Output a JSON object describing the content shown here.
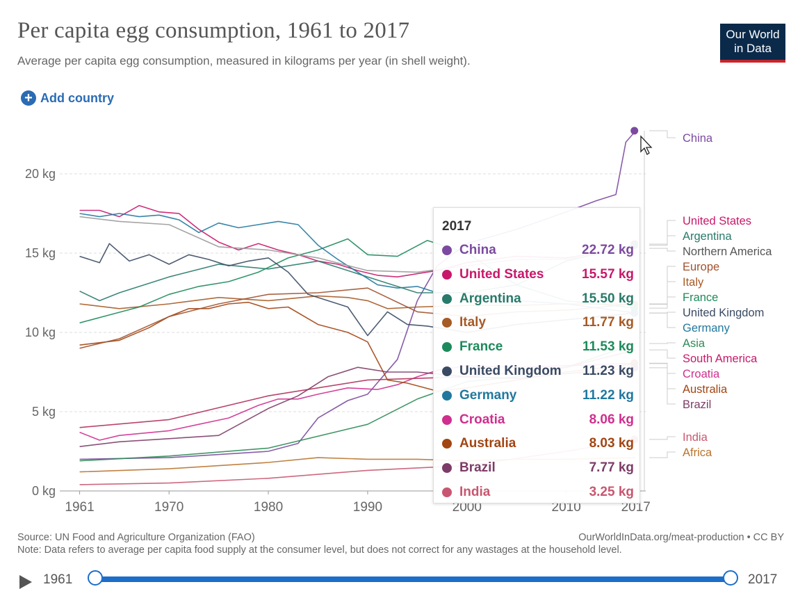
{
  "header": {
    "title": "Per capita egg consumption, 1961 to 2017",
    "subtitle": "Average per capita egg consumption, measured in kilograms per year (in shell weight).",
    "logo_line1": "Our World",
    "logo_line2": "in Data",
    "add_country": "Add country"
  },
  "footer": {
    "source": "Source: UN Food and Agriculture Organization (FAO)",
    "note": "Note: Data refers to average per capita food supply at the consumer level, but does not correct for any wastages at the household level.",
    "license": "OurWorldInData.org/meat-production • CC BY"
  },
  "slider": {
    "start": "1961",
    "end": "2017"
  },
  "tooltip": {
    "year": "2017",
    "rows": [
      {
        "name": "China",
        "value": "22.72 kg",
        "color": "#7b4aa0"
      },
      {
        "name": "United States",
        "value": "15.57 kg",
        "color": "#c8186b"
      },
      {
        "name": "Argentina",
        "value": "15.50 kg",
        "color": "#287a6a"
      },
      {
        "name": "Italy",
        "value": "11.77 kg",
        "color": "#a65a25"
      },
      {
        "name": "France",
        "value": "11.53 kg",
        "color": "#1d8a5b"
      },
      {
        "name": "United Kingdom",
        "value": "11.23 kg",
        "color": "#3a4a63"
      },
      {
        "name": "Germany",
        "value": "11.22 kg",
        "color": "#21789e"
      },
      {
        "name": "Croatia",
        "value": "8.06 kg",
        "color": "#cf2f8e"
      },
      {
        "name": "Australia",
        "value": "8.03 kg",
        "color": "#a24512"
      },
      {
        "name": "Brazil",
        "value": "7.77 kg",
        "color": "#7d3c67"
      },
      {
        "name": "India",
        "value": "3.25 kg",
        "color": "#c95670"
      }
    ]
  },
  "chart_data": {
    "type": "line",
    "title": "Per capita egg consumption, 1961 to 2017",
    "ylabel": "",
    "xlim": [
      1959,
      2018
    ],
    "ylim": [
      0,
      22.72
    ],
    "x_ticks": [
      1961,
      1970,
      1980,
      1990,
      2000,
      2010,
      2017
    ],
    "y_ticks": [
      {
        "v": 0,
        "label": "0 kg"
      },
      {
        "v": 5,
        "label": "5 kg"
      },
      {
        "v": 10,
        "label": "10 kg"
      },
      {
        "v": 15,
        "label": "15 kg"
      },
      {
        "v": 20,
        "label": "20 kg"
      }
    ],
    "series": [
      {
        "name": "China",
        "color": "#7b4aa0",
        "x": [
          1961,
          1970,
          1980,
          1983,
          1985,
          1988,
          1990,
          1993,
          1995,
          1997,
          2000,
          2005,
          2010,
          2013,
          2015,
          2016,
          2017
        ],
        "y": [
          2.0,
          2.1,
          2.5,
          3.0,
          4.6,
          5.7,
          6.1,
          8.3,
          12.0,
          14.2,
          15.6,
          16.5,
          17.6,
          18.3,
          18.7,
          22.0,
          22.72
        ]
      },
      {
        "name": "United States",
        "color": "#c8186b",
        "x": [
          1961,
          1963,
          1965,
          1967,
          1969,
          1971,
          1973,
          1975,
          1977,
          1979,
          1981,
          1983,
          1985,
          1987,
          1989,
          1991,
          1993,
          1995,
          1997,
          2000,
          2005,
          2010,
          2015,
          2017
        ],
        "y": [
          17.7,
          17.7,
          17.3,
          18.0,
          17.6,
          17.5,
          16.5,
          15.7,
          15.2,
          15.6,
          15.2,
          14.9,
          14.5,
          14.3,
          13.9,
          13.6,
          13.5,
          13.7,
          13.9,
          14.4,
          14.8,
          14.7,
          15.2,
          15.57
        ]
      },
      {
        "name": "Argentina",
        "color": "#287a6a",
        "x": [
          1961,
          1963,
          1965,
          1970,
          1975,
          1980,
          1985,
          1990,
          1995,
          2000,
          2005,
          2010,
          2017
        ],
        "y": [
          12.6,
          12.0,
          12.5,
          13.5,
          14.3,
          14.0,
          14.5,
          13.5,
          12.5,
          12.5,
          13.0,
          14.5,
          15.5
        ]
      },
      {
        "name": "Italy",
        "color": "#a65a25",
        "x": [
          1961,
          1965,
          1970,
          1975,
          1980,
          1985,
          1988,
          1990,
          1992,
          1995,
          2000,
          2005,
          2010,
          2017
        ],
        "y": [
          11.8,
          11.5,
          11.8,
          12.2,
          12.0,
          12.3,
          12.2,
          12.0,
          11.5,
          11.6,
          11.7,
          11.7,
          11.8,
          11.77
        ]
      },
      {
        "name": "France",
        "color": "#1d8a5b",
        "x": [
          1961,
          1964,
          1967,
          1970,
          1973,
          1976,
          1979,
          1982,
          1985,
          1988,
          1990,
          1993,
          1996,
          2000,
          2005,
          2010,
          2017
        ],
        "y": [
          10.6,
          11.1,
          11.6,
          12.4,
          12.9,
          13.2,
          13.8,
          14.7,
          15.2,
          15.9,
          14.9,
          14.8,
          15.8,
          15.0,
          13.0,
          12.0,
          11.53
        ]
      },
      {
        "name": "United Kingdom",
        "color": "#3a4a63",
        "x": [
          1961,
          1963,
          1964,
          1966,
          1968,
          1970,
          1972,
          1974,
          1976,
          1978,
          1980,
          1982,
          1984,
          1986,
          1988,
          1990,
          1992,
          1994,
          1996,
          2000,
          2005,
          2010,
          2017
        ],
        "y": [
          14.8,
          14.4,
          15.6,
          14.5,
          14.9,
          14.3,
          14.9,
          14.6,
          14.2,
          14.5,
          14.7,
          13.8,
          12.4,
          12.0,
          11.6,
          9.8,
          11.3,
          10.5,
          10.4,
          10.0,
          10.5,
          10.8,
          11.23
        ]
      },
      {
        "name": "Germany",
        "color": "#21789e",
        "x": [
          1961,
          1963,
          1965,
          1967,
          1969,
          1971,
          1973,
          1975,
          1977,
          1979,
          1981,
          1983,
          1985,
          1987,
          1989,
          1991,
          1993,
          1995,
          1997,
          2000,
          2005,
          2010,
          2017
        ],
        "y": [
          17.5,
          17.3,
          17.5,
          17.3,
          17.4,
          17.1,
          16.3,
          16.9,
          16.6,
          16.8,
          17.0,
          16.8,
          15.5,
          14.6,
          13.8,
          13.0,
          12.8,
          12.9,
          12.5,
          12.5,
          12.0,
          11.8,
          11.22
        ]
      },
      {
        "name": "Croatia",
        "color": "#cf2f8e",
        "x": [
          1961,
          1963,
          1965,
          1970,
          1973,
          1976,
          1979,
          1981,
          1983,
          1985,
          1988,
          1991,
          1993,
          1995,
          1997,
          2000,
          2005,
          2010,
          2017
        ],
        "y": [
          3.7,
          3.2,
          3.5,
          3.8,
          4.2,
          4.6,
          5.4,
          5.8,
          5.8,
          6.1,
          6.5,
          6.4,
          6.7,
          7.2,
          7.6,
          7.9,
          7.8,
          7.9,
          8.06
        ]
      },
      {
        "name": "Australia",
        "color": "#a24512",
        "x": [
          1961,
          1965,
          1968,
          1970,
          1972,
          1974,
          1976,
          1978,
          1980,
          1982,
          1985,
          1988,
          1990,
          1992,
          1994,
          1997,
          2000,
          2005,
          2010,
          2017
        ],
        "y": [
          9.2,
          9.5,
          10.3,
          11.0,
          11.5,
          11.5,
          11.8,
          11.9,
          11.5,
          11.6,
          10.5,
          10.0,
          9.4,
          7.0,
          6.8,
          6.3,
          6.5,
          7.0,
          7.5,
          8.03
        ]
      },
      {
        "name": "Brazil",
        "color": "#7d3c67",
        "x": [
          1961,
          1965,
          1970,
          1975,
          1980,
          1983,
          1986,
          1989,
          1992,
          1995,
          2000,
          2005,
          2010,
          2017
        ],
        "y": [
          2.8,
          3.1,
          3.3,
          3.5,
          5.2,
          6.0,
          7.2,
          7.8,
          7.5,
          7.5,
          7.2,
          7.1,
          7.4,
          7.77
        ]
      },
      {
        "name": "India",
        "color": "#c95670",
        "x": [
          1961,
          1970,
          1980,
          1990,
          2000,
          2010,
          2017
        ],
        "y": [
          0.4,
          0.5,
          0.8,
          1.3,
          1.6,
          2.5,
          3.25
        ]
      },
      {
        "name": "Northern America",
        "color": "#9a9a9a",
        "x": [
          1961,
          1965,
          1970,
          1975,
          1980,
          1985,
          1990,
          1995,
          2000,
          2005,
          2010,
          2017
        ],
        "y": [
          17.3,
          17.0,
          16.8,
          15.4,
          15.2,
          14.7,
          13.9,
          13.8,
          14.2,
          14.6,
          14.6,
          15.3
        ]
      },
      {
        "name": "Europe",
        "color": "#a0522d",
        "x": [
          1961,
          1965,
          1970,
          1975,
          1980,
          1985,
          1990,
          1995,
          2000,
          2005,
          2010,
          2017
        ],
        "y": [
          9.0,
          9.6,
          11.0,
          11.8,
          12.4,
          12.5,
          12.8,
          11.3,
          11.0,
          11.3,
          11.4,
          11.8
        ]
      },
      {
        "name": "Asia",
        "color": "#2e8b57",
        "x": [
          1961,
          1970,
          1980,
          1990,
          1995,
          2000,
          2005,
          2010,
          2017
        ],
        "y": [
          1.9,
          2.2,
          2.7,
          4.2,
          5.8,
          6.9,
          7.2,
          7.8,
          9.3
        ]
      },
      {
        "name": "South America",
        "color": "#b0305a",
        "x": [
          1961,
          1970,
          1980,
          1990,
          2000,
          2010,
          2017
        ],
        "y": [
          4.0,
          4.5,
          6.0,
          7.0,
          7.2,
          7.8,
          8.9
        ]
      },
      {
        "name": "Africa",
        "color": "#b8732e",
        "x": [
          1961,
          1970,
          1980,
          1985,
          1990,
          1995,
          2000,
          2005,
          2010,
          2017
        ],
        "y": [
          1.2,
          1.4,
          1.8,
          2.1,
          2.0,
          2.0,
          1.9,
          2.0,
          2.0,
          2.1
        ]
      }
    ],
    "end_labels": [
      {
        "text": "China",
        "color": "#7b4aa0"
      },
      {
        "text": "United States",
        "color": "#c8186b"
      },
      {
        "text": "Argentina",
        "color": "#287a6a"
      },
      {
        "text": "Northern America",
        "color": "#555555"
      },
      {
        "text": "Europe",
        "color": "#a0522d"
      },
      {
        "text": "Italy",
        "color": "#a65a25"
      },
      {
        "text": "France",
        "color": "#1d8a5b"
      },
      {
        "text": "United Kingdom",
        "color": "#3a4a63"
      },
      {
        "text": "Germany",
        "color": "#21789e"
      },
      {
        "text": "Asia",
        "color": "#2e8b57"
      },
      {
        "text": "South America",
        "color": "#c8186b"
      },
      {
        "text": "Croatia",
        "color": "#cf2f8e"
      },
      {
        "text": "Australia",
        "color": "#a24512"
      },
      {
        "text": "Brazil",
        "color": "#7d3c67"
      },
      {
        "text": "India",
        "color": "#c95670"
      },
      {
        "text": "Africa",
        "color": "#b8732e"
      }
    ]
  }
}
